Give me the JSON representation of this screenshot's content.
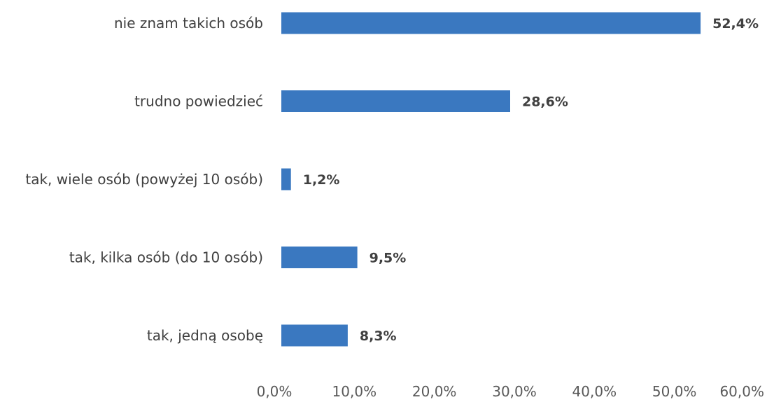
{
  "chart_data": {
    "type": "bar",
    "orientation": "horizontal",
    "categories": [
      "nie znam takich osób",
      "trudno powiedzieć",
      "tak, wiele osób (powyżej 10 osób)",
      "tak, kilka osób (do 10 osób)",
      "tak, jedną osobę"
    ],
    "values": [
      52.4,
      28.6,
      1.2,
      9.5,
      8.3
    ],
    "value_labels": [
      "52,4%",
      "28,6%",
      "1,2%",
      "9,5%",
      "8,3%"
    ],
    "x_ticks": [
      "0,0%",
      "10,0%",
      "20,0%",
      "30,0%",
      "40,0%",
      "50,0%",
      "60,0%"
    ],
    "xlim": [
      0,
      60
    ],
    "title": "",
    "xlabel": "",
    "ylabel": "",
    "grid": false,
    "legend": "none",
    "bar_color": "#3a78c0"
  }
}
